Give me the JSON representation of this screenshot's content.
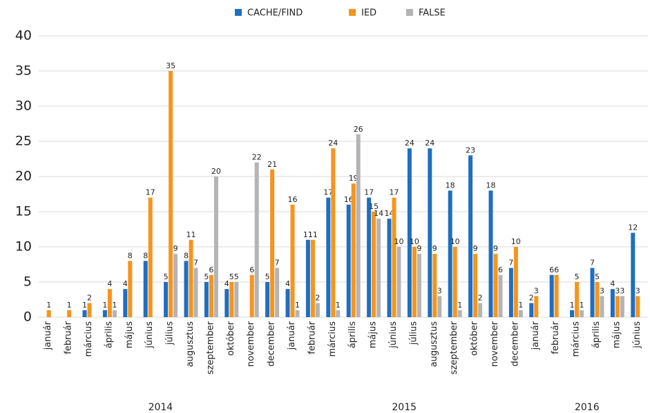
{
  "chart_data": {
    "type": "bar",
    "categories": [
      "január",
      "február",
      "március",
      "április",
      "május",
      "június",
      "július",
      "augusztus",
      "szeptember",
      "október",
      "november",
      "december",
      "január",
      "február",
      "március",
      "április",
      "május",
      "június",
      "július",
      "augusztus",
      "szeptember",
      "október",
      "november",
      "december",
      "január",
      "február",
      "március",
      "április",
      "május",
      "június"
    ],
    "groups": [
      {
        "label": "2014",
        "size": 12
      },
      {
        "label": "2015",
        "size": 12
      },
      {
        "label": "2016",
        "size": 6
      }
    ],
    "series": [
      {
        "name": "CACHE/FIND",
        "color": "#1f6fc0",
        "values": [
          null,
          null,
          1,
          1,
          4,
          8,
          5,
          8,
          5,
          4,
          null,
          5,
          4,
          11,
          17,
          16,
          17,
          14,
          24,
          24,
          18,
          23,
          18,
          7,
          2,
          6,
          1,
          7,
          4,
          12
        ]
      },
      {
        "name": "IED",
        "color": "#f7941d",
        "values": [
          1,
          1,
          2,
          4,
          8,
          17,
          35,
          11,
          6,
          5,
          6,
          21,
          16,
          11,
          24,
          19,
          15,
          17,
          10,
          9,
          10,
          9,
          9,
          10,
          3,
          6,
          5,
          5,
          3,
          3
        ]
      },
      {
        "name": "FALSE",
        "color": "#b4b4b4",
        "values": [
          null,
          null,
          null,
          1,
          null,
          null,
          9,
          7,
          20,
          5,
          22,
          7,
          1,
          2,
          1,
          26,
          14,
          10,
          9,
          3,
          1,
          2,
          6,
          1,
          null,
          null,
          1,
          3,
          3,
          null
        ]
      }
    ],
    "ylim": [
      0,
      40
    ],
    "yticks": [
      0,
      5,
      10,
      15,
      20,
      25,
      30,
      35,
      40
    ],
    "grid": true,
    "legend": "top"
  }
}
